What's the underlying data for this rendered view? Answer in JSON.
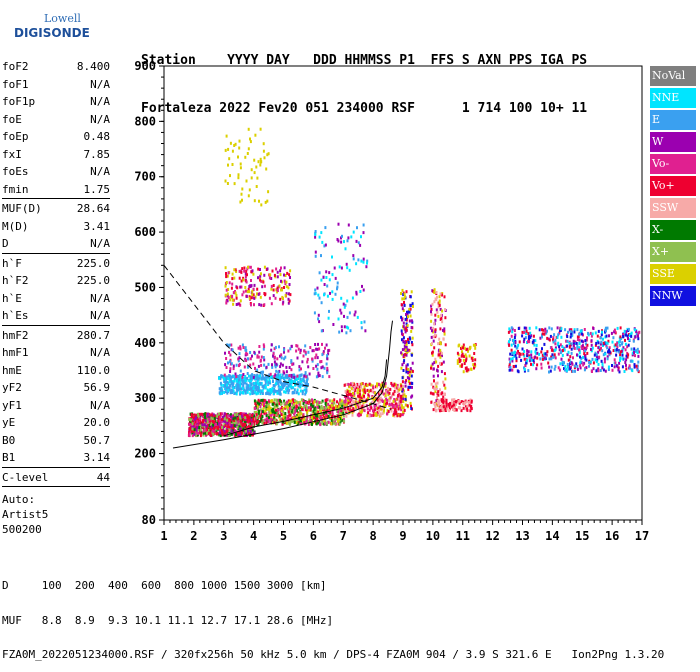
{
  "logo": {
    "top": "Lowell",
    "bottom": "DIGISONDE"
  },
  "header": {
    "line1": "Station    YYYY DAY   DDD HHMMSS P1  FFS S AXN PPS IGA PS",
    "line2": "Fortaleza 2022 Fev20 051 234000 RSF      1 714 100 10+ 11"
  },
  "params_group1": [
    {
      "k": "foF2",
      "v": "8.400"
    },
    {
      "k": "foF1",
      "v": "N/A"
    },
    {
      "k": "foF1p",
      "v": "N/A"
    },
    {
      "k": "foE",
      "v": "N/A"
    },
    {
      "k": "foEp",
      "v": "0.48"
    },
    {
      "k": "fxI",
      "v": "7.85"
    },
    {
      "k": "foEs",
      "v": "N/A"
    },
    {
      "k": "fmin",
      "v": "1.75"
    }
  ],
  "params_group2": [
    {
      "k": "MUF(D)",
      "v": "28.64"
    },
    {
      "k": "M(D)",
      "v": "3.41"
    },
    {
      "k": "D",
      "v": "N/A"
    }
  ],
  "params_group3": [
    {
      "k": "h`F",
      "v": "225.0"
    },
    {
      "k": "h`F2",
      "v": "225.0"
    },
    {
      "k": "h`E",
      "v": "N/A"
    },
    {
      "k": "h`Es",
      "v": "N/A"
    }
  ],
  "params_group4": [
    {
      "k": "hmF2",
      "v": "280.7"
    },
    {
      "k": "hmF1",
      "v": "N/A"
    },
    {
      "k": "hmE",
      "v": "110.0"
    },
    {
      "k": "yF2",
      "v": "56.9"
    },
    {
      "k": "yF1",
      "v": "N/A"
    },
    {
      "k": "yE",
      "v": "20.0"
    },
    {
      "k": "B0",
      "v": "50.7"
    },
    {
      "k": "B1",
      "v": "3.14"
    }
  ],
  "params_group5": [
    {
      "k": "C-level",
      "v": "44"
    }
  ],
  "auto": [
    "Auto:",
    "Artist5",
    "500200"
  ],
  "legend": [
    {
      "label": "NoVal",
      "color": "#7f7f7f"
    },
    {
      "label": "NNE",
      "color": "#00e5ff"
    },
    {
      "label": "E",
      "color": "#3aa0f0"
    },
    {
      "label": "W",
      "color": "#9b00b0"
    },
    {
      "label": "Vo-",
      "color": "#e02090"
    },
    {
      "label": "Vo+",
      "color": "#ee0030"
    },
    {
      "label": "SSW",
      "color": "#f7aaa8"
    },
    {
      "label": "X-",
      "color": "#007a00"
    },
    {
      "label": "X+",
      "color": "#8fc050"
    },
    {
      "label": "SSE",
      "color": "#dbd000"
    },
    {
      "label": "NNW",
      "color": "#1010e0"
    }
  ],
  "footer": {
    "line1": "D     100  200  400  600  800 1000 1500 3000 [km]",
    "line2": "MUF   8.8  8.9  9.3 10.1 11.1 12.7 17.1 28.6 [MHz]",
    "line3": "FZA0M_2022051234000.RSF / 320fx256h 50 kHz 5.0 km / DPS-4 FZA0M 904 / 3.9 S 321.6 E   Ion2Png 1.3.20"
  },
  "chart_data": {
    "type": "scatter",
    "xlim": [
      1,
      17
    ],
    "ylim": [
      80,
      900
    ],
    "x_ticks": [
      1,
      2,
      3,
      4,
      5,
      6,
      7,
      8,
      9,
      10,
      11,
      12,
      13,
      14,
      15,
      16,
      17
    ],
    "y_ticks": [
      80,
      200,
      300,
      400,
      500,
      600,
      700,
      800,
      900
    ],
    "clusters": [
      {
        "x": [
          1.8,
          4.0
        ],
        "y": [
          235,
          275
        ],
        "n": 900,
        "colors": [
          "#ee0030",
          "#e02090",
          "#ee0030",
          "#9b00b0",
          "#007a00",
          "#8fc050"
        ]
      },
      {
        "x": [
          4.0,
          7.0
        ],
        "y": [
          255,
          300
        ],
        "n": 700,
        "colors": [
          "#ee0030",
          "#e02090",
          "#007a00",
          "#dbd000",
          "#8fc050"
        ]
      },
      {
        "x": [
          7.0,
          9.0
        ],
        "y": [
          270,
          330
        ],
        "n": 450,
        "colors": [
          "#ee0030",
          "#e02090",
          "#f7aaa8",
          "#dbd000"
        ]
      },
      {
        "x": [
          2.8,
          5.8
        ],
        "y": [
          310,
          345
        ],
        "n": 500,
        "colors": [
          "#3aa0f0",
          "#3aa0f0",
          "#00e5ff"
        ]
      },
      {
        "x": [
          3.0,
          6.5
        ],
        "y": [
          340,
          400
        ],
        "n": 220,
        "colors": [
          "#3aa0f0",
          "#9b00b0",
          "#e02090"
        ]
      },
      {
        "x": [
          3.0,
          5.2
        ],
        "y": [
          470,
          540
        ],
        "n": 200,
        "colors": [
          "#dbd000",
          "#9b00b0",
          "#e02090",
          "#ee0030"
        ]
      },
      {
        "x": [
          3.0,
          4.5
        ],
        "y": [
          650,
          790
        ],
        "n": 60,
        "colors": [
          "#dbd000"
        ]
      },
      {
        "x": [
          6.0,
          7.8
        ],
        "y": [
          420,
          620
        ],
        "n": 120,
        "colors": [
          "#3aa0f0",
          "#00e5ff",
          "#9b00b0"
        ]
      },
      {
        "x": [
          8.9,
          9.3
        ],
        "y": [
          280,
          500
        ],
        "n": 160,
        "colors": [
          "#9b00b0",
          "#1010e0",
          "#ee0030",
          "#dbd000"
        ]
      },
      {
        "x": [
          9.9,
          10.4
        ],
        "y": [
          280,
          500
        ],
        "n": 160,
        "colors": [
          "#9b00b0",
          "#ee0030",
          "#dbd000",
          "#f7aaa8"
        ]
      },
      {
        "x": [
          10.0,
          11.3
        ],
        "y": [
          280,
          300
        ],
        "n": 120,
        "colors": [
          "#f7aaa8",
          "#ee0030"
        ]
      },
      {
        "x": [
          10.8,
          11.4
        ],
        "y": [
          350,
          400
        ],
        "n": 60,
        "colors": [
          "#dbd000",
          "#ee0030"
        ]
      },
      {
        "x": [
          12.5,
          16.9
        ],
        "y": [
          350,
          430
        ],
        "n": 600,
        "colors": [
          "#3aa0f0",
          "#00e5ff",
          "#9b00b0",
          "#ee0030",
          "#1010e0",
          "#e02090"
        ]
      }
    ],
    "profile_solid": [
      [
        1.3,
        210
      ],
      [
        3,
        225
      ],
      [
        5,
        245
      ],
      [
        7,
        270
      ],
      [
        8,
        290
      ],
      [
        8.3,
        310
      ],
      [
        8.45,
        340
      ],
      [
        8.55,
        390
      ],
      [
        8.6,
        420
      ],
      [
        8.65,
        440
      ]
    ],
    "profile_solid2": [
      [
        3,
        232
      ],
      [
        4,
        248
      ],
      [
        5,
        258
      ],
      [
        6,
        270
      ],
      [
        7,
        282
      ],
      [
        8,
        300
      ],
      [
        8.3,
        320
      ],
      [
        8.4,
        340
      ],
      [
        8.45,
        370
      ]
    ],
    "profile_dashed": [
      [
        1,
        540
      ],
      [
        2,
        470
      ],
      [
        3,
        400
      ],
      [
        4,
        350
      ],
      [
        5,
        330
      ],
      [
        6,
        320
      ],
      [
        7,
        305
      ],
      [
        8,
        290
      ],
      [
        8.6,
        280
      ]
    ]
  }
}
